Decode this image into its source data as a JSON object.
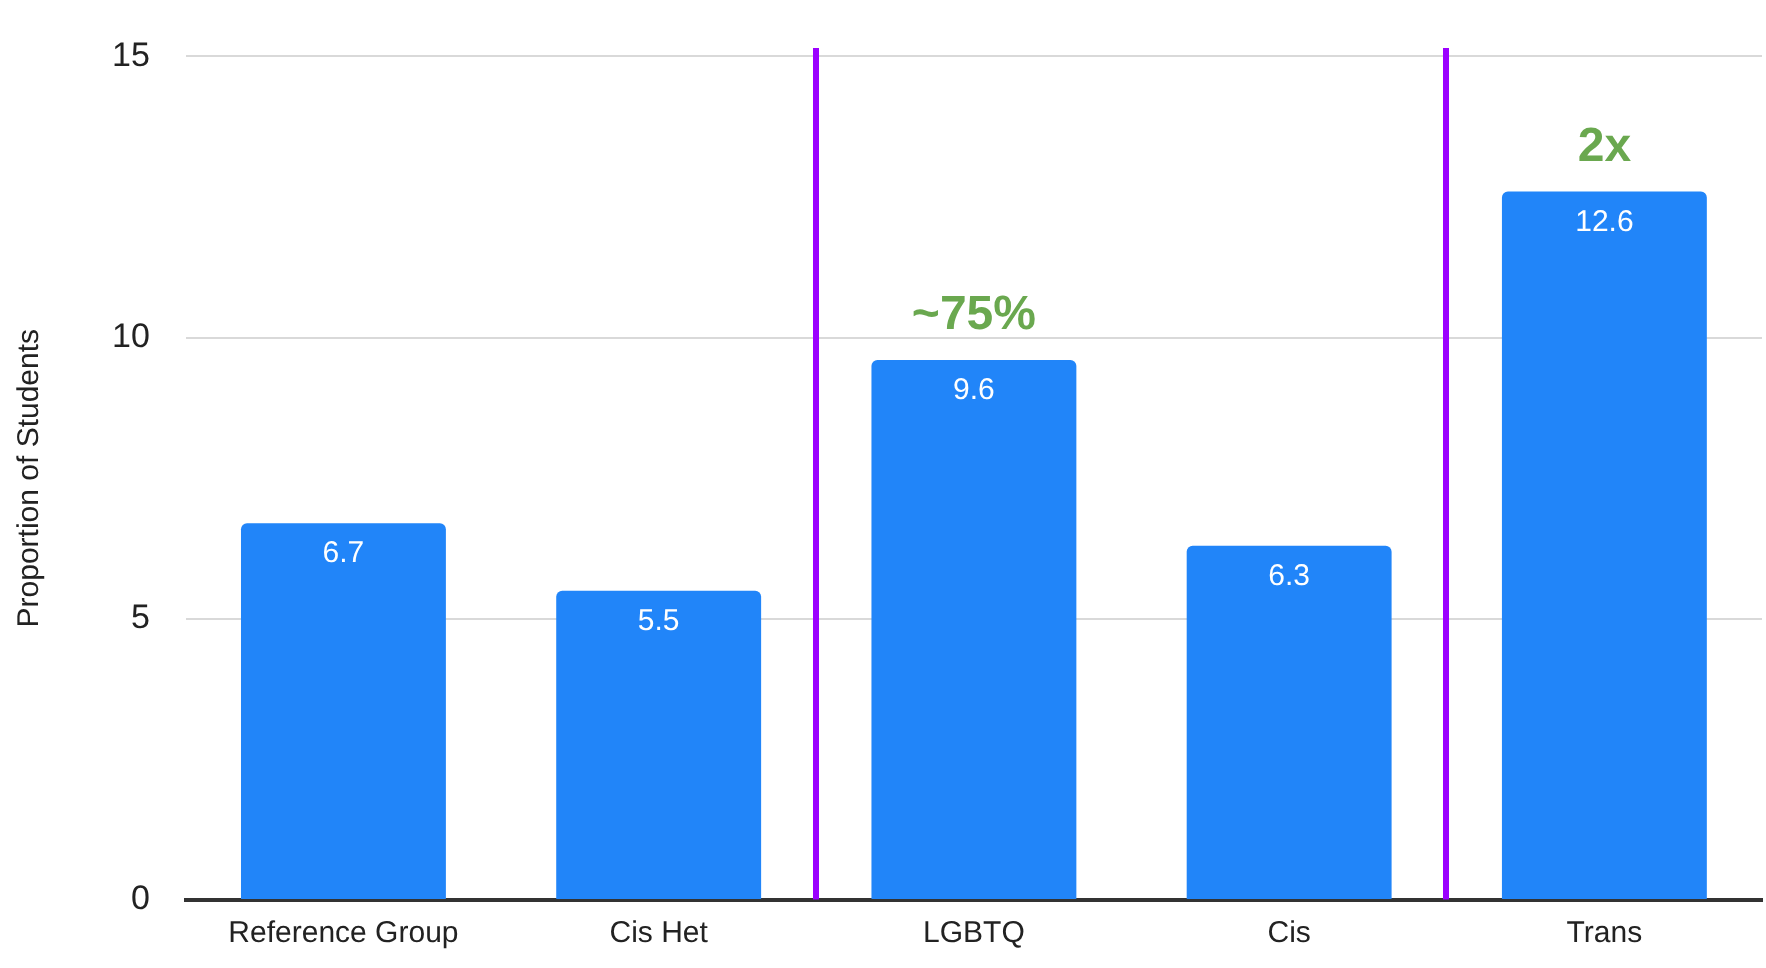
{
  "chart_data": {
    "type": "bar",
    "ylabel": "Proportion of Students",
    "categories": [
      "Reference Group",
      "Cis Het",
      "LGBTQ",
      "Cis",
      "Trans"
    ],
    "values": [
      6.7,
      5.5,
      9.6,
      6.3,
      12.6
    ],
    "color": "#2185f9",
    "ylim": [
      0,
      15
    ],
    "yticks": [
      0,
      5,
      10,
      15
    ],
    "grid": "y",
    "data_labels": true,
    "annotations": [
      {
        "text": "~75%",
        "x": "LGBTQ",
        "y": 9.6
      },
      {
        "text": "2x",
        "x": "Trans",
        "y": 12.6
      }
    ]
  }
}
